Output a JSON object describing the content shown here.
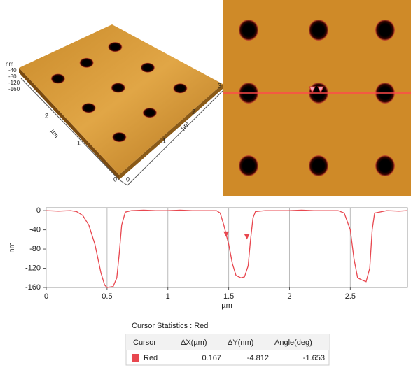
{
  "image_3d": {
    "z_axis_label": "nm",
    "z_ticks": [
      "-40",
      "-80",
      "-120",
      "-160"
    ],
    "right_axis_label": "µm",
    "right_ticks": [
      "0",
      "1",
      "2",
      "3"
    ],
    "left_axis_label": "µm",
    "left_ticks": [
      "0",
      "1",
      "2"
    ]
  },
  "chart_data": {
    "type": "line",
    "x_label": "µm",
    "y_label": "nm",
    "x": [
      0,
      0.1,
      0.2,
      0.25,
      0.3,
      0.35,
      0.4,
      0.45,
      0.48,
      0.5,
      0.55,
      0.58,
      0.6,
      0.62,
      0.65,
      0.7,
      0.8,
      0.9,
      1.0,
      1.1,
      1.2,
      1.3,
      1.4,
      1.43,
      1.46,
      1.5,
      1.53,
      1.56,
      1.6,
      1.63,
      1.66,
      1.68,
      1.7,
      1.72,
      1.8,
      1.9,
      2.0,
      2.1,
      2.2,
      2.3,
      2.4,
      2.45,
      2.5,
      2.53,
      2.56,
      2.6,
      2.63,
      2.66,
      2.68,
      2.7,
      2.8,
      2.9,
      2.97
    ],
    "series": [
      {
        "name": "Red",
        "color": "#e8474f",
        "values": [
          0,
          -1,
          0,
          -2,
          -10,
          -30,
          -70,
          -130,
          -155,
          -160,
          -158,
          -140,
          -90,
          -30,
          -3,
          0,
          1,
          0,
          0,
          1,
          0,
          0,
          0,
          -5,
          -30,
          -70,
          -110,
          -135,
          -140,
          -138,
          -115,
          -60,
          -15,
          -2,
          0,
          0,
          0,
          1,
          0,
          0,
          0,
          -5,
          -40,
          -100,
          -140,
          -145,
          -148,
          -120,
          -40,
          -5,
          0,
          -1,
          0
        ]
      }
    ],
    "cursors": [
      {
        "x": 1.48,
        "y": -55
      },
      {
        "x": 1.65,
        "y": -60
      }
    ],
    "xlim": [
      0,
      2.97
    ],
    "ylim": [
      -160,
      6
    ],
    "xticks": [
      0,
      0.5,
      1,
      1.5,
      2,
      2.5
    ],
    "yticks": [
      0,
      -40,
      -80,
      -120,
      -160
    ],
    "grid": "x"
  },
  "table": {
    "title": "Cursor Statistics : Red",
    "headers": [
      "Cursor",
      "ΔX(µm)",
      "ΔY(nm)",
      "Angle(deg)"
    ],
    "rows": [
      [
        "Red",
        0.167,
        -4.812,
        -1.653
      ]
    ]
  }
}
